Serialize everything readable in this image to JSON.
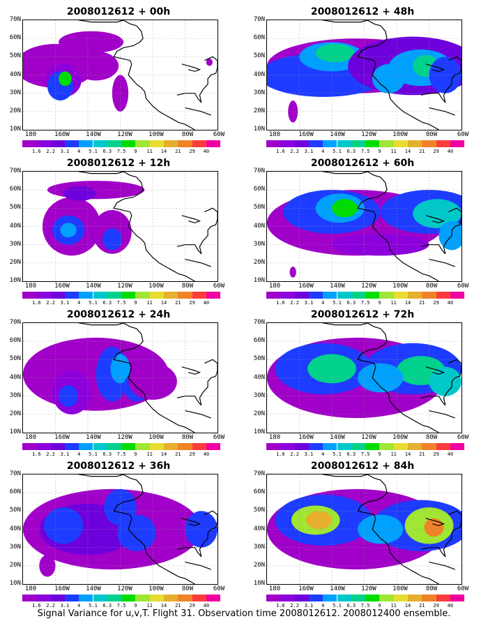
{
  "panels": [
    {
      "title": "2008012612 + 00h"
    },
    {
      "title": "2008012612 + 48h"
    },
    {
      "title": "2008012612 + 12h"
    },
    {
      "title": "2008012612 + 60h"
    },
    {
      "title": "2008012612 + 24h"
    },
    {
      "title": "2008012612 + 72h"
    },
    {
      "title": "2008012612 + 36h"
    },
    {
      "title": "2008012612 + 84h"
    }
  ],
  "lat_labels": [
    "70N",
    "60N",
    "50N",
    "40N",
    "30N",
    "20N",
    "10N"
  ],
  "lon_labels": [
    "180",
    "160W",
    "140W",
    "120W",
    "100W",
    "80W",
    "60W"
  ],
  "colorbar": {
    "labels": [
      "1.6",
      "2.2",
      "3.1",
      "4",
      "5.1",
      "6.3",
      "7.5",
      "9",
      "11",
      "14",
      "21",
      "29",
      "40"
    ],
    "colors": [
      "#a000c8",
      "#8c00dc",
      "#6e00dc",
      "#1e3cff",
      "#00a0ff",
      "#00c8c8",
      "#00d28c",
      "#00dc00",
      "#a0e632",
      "#e6dc32",
      "#e6af2d",
      "#f08228",
      "#fa3c3c",
      "#f000a0"
    ]
  },
  "footer": "Signal Variance for u,v,T. Flight 31. Observation time 2008012612. 2008012400 ensemble."
}
